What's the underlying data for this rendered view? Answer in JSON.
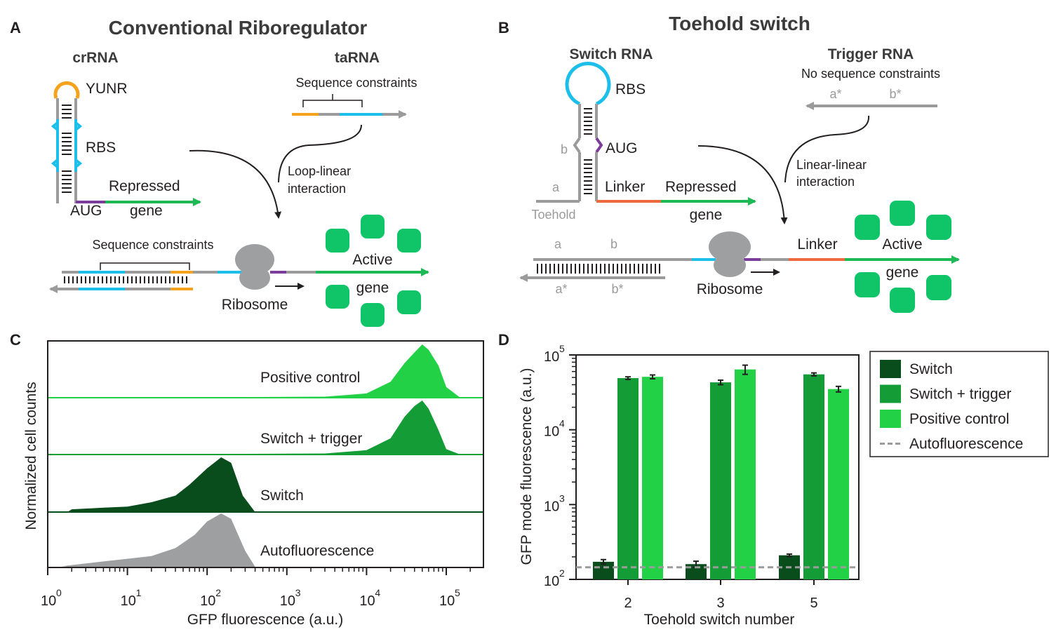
{
  "panels": {
    "A": {
      "label": "A",
      "title": "Conventional Riboregulator",
      "crrna": "crRNA",
      "tarna": "taRNA",
      "yunr": "YUNR",
      "rbs": "RBS",
      "aug": "AUG",
      "repressed": "Repressed",
      "gene": "gene",
      "seq_constraints_top": "Sequence constraints",
      "interaction": [
        "Loop-linear",
        "interaction"
      ],
      "seq_constraints_bottom": "Sequence constraints",
      "ribosome": "Ribosome",
      "active": "Active",
      "active_gene": "gene"
    },
    "B": {
      "label": "B",
      "title": "Toehold switch",
      "switch_rna": "Switch RNA",
      "trigger_rna": "Trigger RNA",
      "no_constraints": "No sequence constraints",
      "a_star": "a*",
      "b_star": "b*",
      "rbs": "RBS",
      "b": "b",
      "aug": "AUG",
      "a": "a",
      "linker": "Linker",
      "repressed": "Repressed",
      "gene": "gene",
      "toehold": "Toehold",
      "interaction": [
        "Linear-linear",
        "interaction"
      ],
      "ribosome": "Ribosome",
      "active": "Active",
      "active_gene": "gene"
    },
    "C": {
      "label": "C",
      "ylabel": "Normalized cell counts",
      "xlabel": "GFP fluorescence (a.u.)",
      "xtick_base": "10",
      "xtick_exps": [
        "0",
        "1",
        "2",
        "3",
        "4",
        "5"
      ],
      "rows": [
        "Positive control",
        "Switch + trigger",
        "Switch",
        "Autofluorescence"
      ]
    },
    "D": {
      "label": "D",
      "ylabel": "GFP mode fluorescence (a.u.)",
      "xlabel": "Toehold switch number",
      "ytick_base": "10",
      "ytick_exps": [
        "2",
        "3",
        "4",
        "5"
      ]
    }
  },
  "colors": {
    "switch": "#0a4d1c",
    "switch_trigger": "#149c37",
    "positive": "#23d147",
    "auto": "#9d9fa1"
  },
  "chart_data": [
    {
      "type": "area",
      "panel": "C",
      "title": "",
      "xlabel": "GFP fluorescence (a.u.)",
      "ylabel": "Normalized cell counts",
      "xscale": "log",
      "xlim": [
        1,
        300000
      ],
      "series": [
        {
          "name": "Positive control",
          "peak": 50000,
          "x": [
            3000,
            10000,
            20000,
            30000,
            40000,
            50000,
            60000,
            80000,
            100000,
            150000
          ],
          "y": [
            0.02,
            0.08,
            0.3,
            0.65,
            0.85,
            1.0,
            0.9,
            0.6,
            0.2,
            0.0
          ]
        },
        {
          "name": "Switch + trigger",
          "peak": 50000,
          "x": [
            3000,
            10000,
            20000,
            30000,
            40000,
            50000,
            60000,
            80000,
            100000,
            150000
          ],
          "y": [
            0.02,
            0.08,
            0.3,
            0.7,
            0.9,
            1.0,
            0.85,
            0.45,
            0.1,
            0.0
          ]
        },
        {
          "name": "Switch",
          "peak": 170,
          "x": [
            2,
            5,
            10,
            20,
            40,
            60,
            100,
            150,
            200,
            280,
            400
          ],
          "y": [
            0.05,
            0.08,
            0.1,
            0.18,
            0.3,
            0.5,
            0.8,
            1.0,
            0.9,
            0.3,
            0.0
          ]
        },
        {
          "name": "Autofluorescence",
          "peak": 150,
          "x": [
            1.5,
            5,
            10,
            20,
            40,
            70,
            100,
            150,
            200,
            300,
            400
          ],
          "y": [
            0.01,
            0.1,
            0.15,
            0.2,
            0.35,
            0.6,
            0.85,
            1.0,
            0.9,
            0.3,
            0.0
          ]
        }
      ]
    },
    {
      "type": "bar",
      "panel": "D",
      "title": "",
      "xlabel": "Toehold switch number",
      "ylabel": "GFP mode fluorescence (a.u.)",
      "yscale": "log",
      "ylim": [
        100,
        100000
      ],
      "categories": [
        "2",
        "3",
        "5"
      ],
      "series": [
        {
          "name": "Switch",
          "values": [
            172,
            160,
            210
          ],
          "errors": [
            12,
            15,
            8
          ]
        },
        {
          "name": "Switch + trigger",
          "values": [
            49000,
            43000,
            55000
          ],
          "errors": [
            2000,
            3000,
            2500
          ]
        },
        {
          "name": "Positive control",
          "values": [
            51000,
            64000,
            35000
          ],
          "errors": [
            3000,
            9000,
            3000
          ]
        }
      ],
      "reference_line": {
        "name": "Autofluorescence",
        "value": 145
      },
      "legend": "right",
      "legend_entries": [
        "Switch",
        "Switch + trigger",
        "Positive control",
        "Autofluorescence"
      ]
    }
  ]
}
